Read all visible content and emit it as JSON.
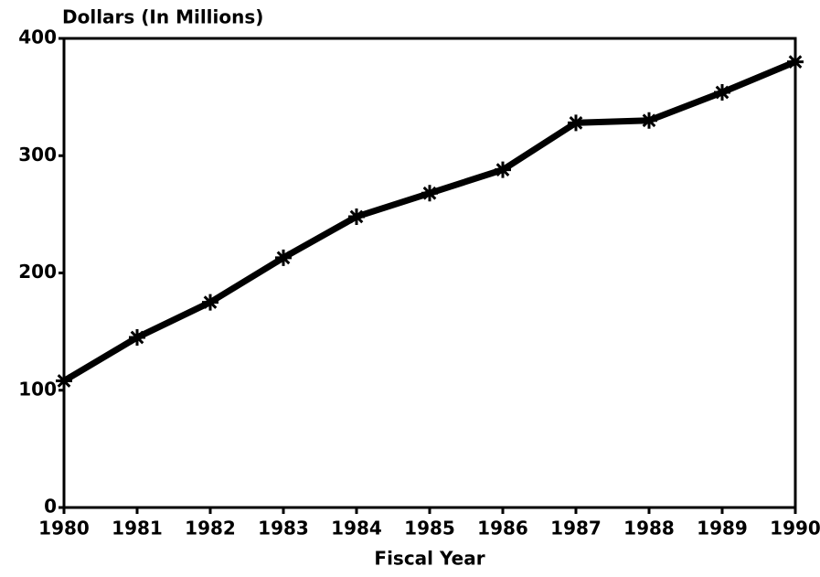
{
  "chart_data": {
    "type": "line",
    "y_label": "Dollars (In Millions)",
    "x_label": "Fiscal Year",
    "x": [
      1980,
      1981,
      1982,
      1983,
      1984,
      1985,
      1986,
      1987,
      1988,
      1989,
      1990
    ],
    "series": [
      {
        "color": "#000000",
        "values": [
          108,
          145,
          175,
          213,
          248,
          268,
          288,
          328,
          330,
          354,
          380
        ]
      }
    ],
    "xlim": [
      1980,
      1990
    ],
    "xticks": [
      1980,
      1981,
      1982,
      1983,
      1984,
      1985,
      1986,
      1987,
      1988,
      1989,
      1990
    ],
    "ylim": [
      0,
      400
    ],
    "yticks": [
      0,
      100,
      200,
      300,
      400
    ],
    "grid": false
  }
}
